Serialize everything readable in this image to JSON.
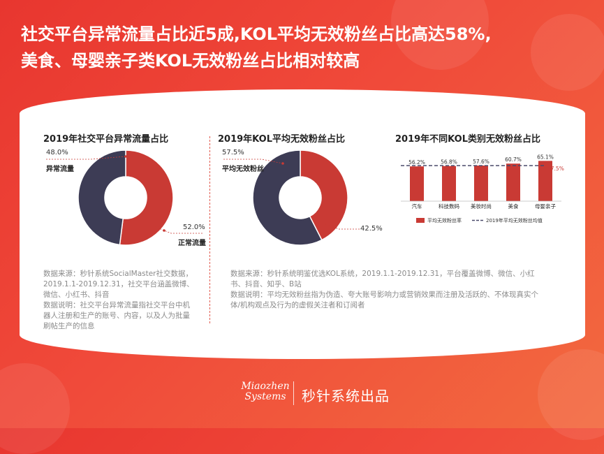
{
  "headline": {
    "line1": "社交平台异常流量占比近5成,KOL平均无效粉丝占比高达58%,",
    "line2": "美食、母婴亲子类KOL无效粉丝占比相对较高"
  },
  "colors": {
    "red": "#c93a34",
    "dark": "#3d3c55",
    "avg_line": "#4a4a6a"
  },
  "chart_data": [
    {
      "type": "pie",
      "title": "2019年社交平台异常流量占比",
      "slices": [
        {
          "label": "异常流量",
          "value": 48.0,
          "value_label": "48.0%",
          "color": "#3d3c55"
        },
        {
          "label": "正常流量",
          "value": 52.0,
          "value_label": "52.0%",
          "color": "#c93a34"
        }
      ]
    },
    {
      "type": "pie",
      "title": "2019年KOL平均无效粉丝占比",
      "slices": [
        {
          "label": "平均无效粉丝",
          "value": 57.5,
          "value_label": "57.5%",
          "color": "#3d3c55"
        },
        {
          "label": "",
          "value": 42.5,
          "value_label": "42.5%",
          "color": "#c93a34"
        }
      ]
    },
    {
      "type": "bar",
      "title": "2019年不同KOL类别无效粉丝占比",
      "categories": [
        "汽车",
        "科技数码",
        "美妆时尚",
        "美食",
        "母婴亲子"
      ],
      "series": [
        {
          "name": "平均无效粉丝率",
          "values": [
            56.2,
            56.8,
            57.6,
            60.7,
            65.1
          ],
          "labels": [
            "56.2%",
            "56.8%",
            "57.6%",
            "60.7%",
            "65.1%"
          ]
        }
      ],
      "reference_line": {
        "name": "2019年平均无效粉丝均值",
        "value": 57.5,
        "label": "57.5%"
      },
      "ylim": [
        0,
        70
      ],
      "legend_position": "bottom"
    }
  ],
  "sources": {
    "left": [
      "数据来源：秒针系统SocialMaster社交数据，2019.1.1-2019.12.31，社交平台涵盖微博、微信、小红书、抖音",
      "数据说明：社交平台异常流量指社交平台中机器人注册和生产的账号、内容，以及人为批量刷帖生产的信息"
    ],
    "right": [
      "数据来源：秒针系统明鉴优选KOL系统，2019.1.1-2019.12.31，平台覆盖微博、微信、小红书、抖音、知乎、B站",
      "数据说明：平均无效粉丝指为伪造、夸大账号影响力或营销效果而注册及活跃的、不体现真实个体/机构观点及行为的虚假关注者和订阅者"
    ]
  },
  "footer": {
    "logo_line1": "Miaozhen",
    "logo_line2": "Systems",
    "brand_cn": "秒针系统出品"
  }
}
